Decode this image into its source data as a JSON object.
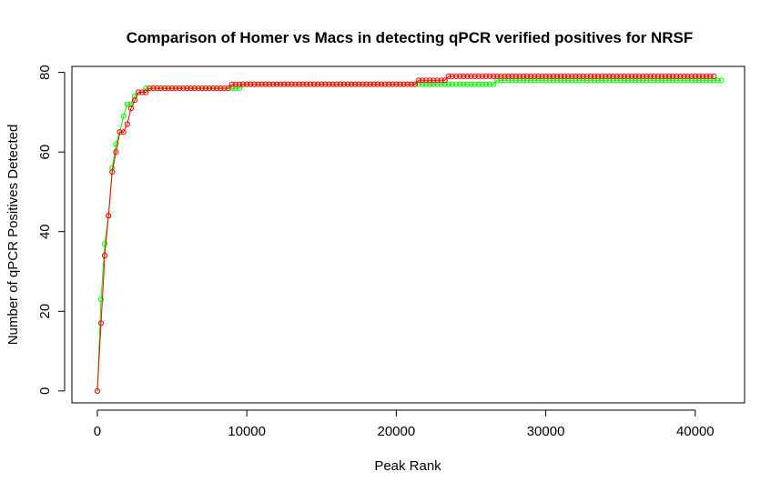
{
  "chart_data": {
    "type": "line",
    "title": "Comparison of Homer vs Macs in detecting qPCR verified positives for NRSF",
    "xlabel": "Peak Rank",
    "ylabel": "Number of qPCR Positives Detected",
    "xlim": [
      -1700,
      43300
    ],
    "ylim": [
      -3,
      81.5
    ],
    "xticks": [
      0,
      10000,
      20000,
      30000,
      40000
    ],
    "xtick_labels": [
      "0",
      "10000",
      "20000",
      "30000",
      "40000"
    ],
    "yticks": [
      0,
      20,
      40,
      60,
      80
    ],
    "ytick_labels": [
      "0",
      "20",
      "40",
      "60",
      "80"
    ],
    "grid": false,
    "legend": "none",
    "series": [
      {
        "color": "#00ff00",
        "marker": "circle-open",
        "points": [
          [
            0,
            0
          ],
          [
            250,
            23
          ],
          [
            500,
            37
          ],
          [
            750,
            44
          ],
          [
            1000,
            56
          ],
          [
            1250,
            62
          ],
          [
            1500,
            65
          ],
          [
            1750,
            69
          ],
          [
            2000,
            72
          ],
          [
            2250,
            72
          ],
          [
            2500,
            74
          ],
          [
            2750,
            75
          ],
          [
            3000,
            75
          ],
          [
            3250,
            76
          ],
          [
            8750,
            76
          ],
          [
            9000,
            76
          ],
          [
            9500,
            76
          ],
          [
            9750,
            77
          ],
          [
            21250,
            77
          ],
          [
            21500,
            77
          ],
          [
            24000,
            77
          ],
          [
            26500,
            77
          ],
          [
            26750,
            78
          ],
          [
            41750,
            78
          ]
        ]
      },
      {
        "color": "#ff0000",
        "marker": "circle-open",
        "points": [
          [
            0,
            0
          ],
          [
            250,
            17
          ],
          [
            500,
            34
          ],
          [
            750,
            44
          ],
          [
            1000,
            55
          ],
          [
            1250,
            60
          ],
          [
            1500,
            65
          ],
          [
            1750,
            65
          ],
          [
            2000,
            67
          ],
          [
            2250,
            71
          ],
          [
            2500,
            73
          ],
          [
            2750,
            75
          ],
          [
            3000,
            75
          ],
          [
            3250,
            75
          ],
          [
            3500,
            76
          ],
          [
            8750,
            76
          ],
          [
            9000,
            77
          ],
          [
            21250,
            77
          ],
          [
            21500,
            78
          ],
          [
            23250,
            78
          ],
          [
            23500,
            79
          ],
          [
            41250,
            79
          ]
        ]
      }
    ]
  }
}
